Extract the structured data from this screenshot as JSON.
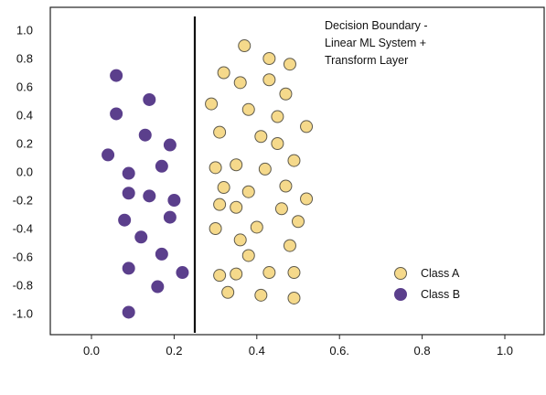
{
  "chart_data": {
    "type": "scatter",
    "title_lines": [
      "Decision Boundary -",
      "Linear ML System +",
      "Transform Layer"
    ],
    "xlabel": "",
    "ylabel": "",
    "xlim": [
      -0.1,
      1.1
    ],
    "ylim": [
      -1.1,
      1.1
    ],
    "x_ticks": [
      0.0,
      0.2,
      0.4,
      0.6,
      0.8,
      1.0
    ],
    "x_tick_labels": [
      "0.0",
      "0.2",
      "0.4",
      "0.6.",
      "0.8",
      "1.0"
    ],
    "y_ticks": [
      1.0,
      0.8,
      0.6,
      0.4,
      0.2,
      0.0,
      -0.2,
      -0.4,
      -0.6,
      -0.8,
      -1.0
    ],
    "y_tick_labels": [
      "1.0",
      "0.8",
      "0.6",
      "0.4",
      "0.2",
      "0.0",
      "-0.2",
      "-0.4",
      "-0.6",
      "-0.8",
      "-1.0"
    ],
    "grid": false,
    "legend_position": "bottom-right",
    "boundary": {
      "x": 0.25,
      "color": "#111111"
    },
    "series": [
      {
        "name": "Class A",
        "color": "#f5d98b",
        "edge_color": "#5e5a4c",
        "x": [
          0.37,
          0.43,
          0.48,
          0.32,
          0.36,
          0.43,
          0.47,
          0.29,
          0.38,
          0.45,
          0.52,
          0.31,
          0.41,
          0.45,
          0.3,
          0.35,
          0.42,
          0.49,
          0.32,
          0.38,
          0.47,
          0.52,
          0.31,
          0.35,
          0.46,
          0.5,
          0.3,
          0.4,
          0.36,
          0.48,
          0.38,
          0.31,
          0.35,
          0.43,
          0.49,
          0.33,
          0.41,
          0.49
        ],
        "y": [
          0.89,
          0.8,
          0.76,
          0.7,
          0.63,
          0.65,
          0.55,
          0.48,
          0.44,
          0.39,
          0.32,
          0.28,
          0.25,
          0.2,
          0.03,
          0.05,
          0.02,
          0.08,
          -0.11,
          -0.14,
          -0.1,
          -0.19,
          -0.23,
          -0.25,
          -0.26,
          -0.35,
          -0.4,
          -0.39,
          -0.48,
          -0.52,
          -0.59,
          -0.73,
          -0.72,
          -0.71,
          -0.71,
          -0.85,
          -0.87,
          -0.89
        ]
      },
      {
        "name": "Class B",
        "color": "#5b3f8c",
        "edge_color": "#5b3f8c",
        "x": [
          0.06,
          0.14,
          0.06,
          0.13,
          0.19,
          0.04,
          0.09,
          0.17,
          0.09,
          0.14,
          0.2,
          0.08,
          0.19,
          0.12,
          0.17,
          0.09,
          0.22,
          0.16,
          0.09
        ],
        "y": [
          0.68,
          0.51,
          0.41,
          0.26,
          0.19,
          0.12,
          -0.01,
          0.04,
          -0.15,
          -0.17,
          -0.2,
          -0.34,
          -0.32,
          -0.46,
          -0.58,
          -0.68,
          -0.71,
          -0.81,
          -0.99
        ]
      }
    ]
  }
}
